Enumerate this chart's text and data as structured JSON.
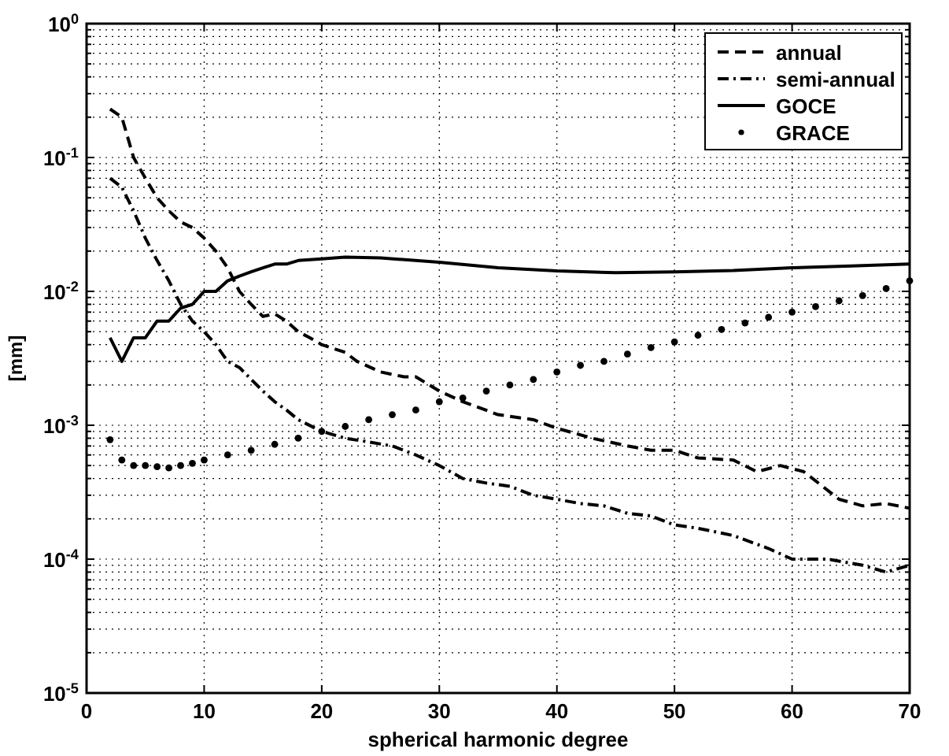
{
  "chart_data": {
    "type": "line",
    "xlabel": "spherical harmonic degree",
    "ylabel": "[mm]",
    "log": "y",
    "grid": true,
    "legend": "top right",
    "xlim": [
      0,
      70
    ],
    "xticks": [
      0,
      10,
      20,
      30,
      40,
      50,
      60,
      70
    ],
    "ylim": [
      1e-05,
      1
    ],
    "yticks": [
      {
        "value": 1e-05,
        "label": "10$^{-5}$"
      },
      {
        "value": 0.0001,
        "label": "10$^{-4}$"
      },
      {
        "value": 0.001,
        "label": "10$^{-3}$"
      },
      {
        "value": 0.01,
        "label": "10$^{-2}$"
      },
      {
        "value": 0.1,
        "label": "10$^{-1}$"
      },
      {
        "value": 1,
        "label": "10$^{0}$"
      }
    ],
    "series": [
      {
        "name": "annual",
        "color": "#000000",
        "line_style": "dashed",
        "marker": "none",
        "x": [
          2,
          3,
          4,
          5,
          6,
          7,
          8,
          9,
          10,
          11,
          12,
          13,
          14,
          15,
          16,
          17,
          18,
          19,
          20,
          22,
          23,
          25,
          27,
          28,
          30,
          32,
          35,
          38,
          40,
          43,
          46,
          48,
          50,
          52,
          55,
          57,
          59,
          61,
          64,
          66,
          68,
          70
        ],
        "values": [
          0.23,
          0.2,
          0.1,
          0.07,
          0.05,
          0.04,
          0.033,
          0.03,
          0.025,
          0.02,
          0.015,
          0.01,
          0.008,
          0.0065,
          0.0068,
          0.006,
          0.005,
          0.0045,
          0.004,
          0.0035,
          0.003,
          0.0025,
          0.0023,
          0.0023,
          0.0018,
          0.0015,
          0.0012,
          0.0011,
          0.00095,
          0.0008,
          0.0007,
          0.00065,
          0.00065,
          0.00057,
          0.00055,
          0.00045,
          0.0005,
          0.00045,
          0.00028,
          0.00025,
          0.00026,
          0.00024
        ]
      },
      {
        "name": "semi-annual",
        "color": "#000000",
        "line_style": "dashdot",
        "marker": "none",
        "x": [
          2,
          3,
          4,
          5,
          6,
          7,
          8,
          9,
          10,
          11,
          12,
          13,
          14,
          15,
          16,
          17,
          18,
          20,
          22,
          24,
          26,
          28,
          30,
          32,
          34,
          36,
          38,
          40,
          42,
          44,
          46,
          48,
          50,
          52,
          55,
          58,
          60,
          63,
          66,
          68,
          70
        ],
        "values": [
          0.07,
          0.06,
          0.04,
          0.025,
          0.017,
          0.012,
          0.008,
          0.006,
          0.005,
          0.004,
          0.003,
          0.0027,
          0.0022,
          0.0018,
          0.0015,
          0.0013,
          0.0011,
          0.0009,
          0.0008,
          0.00075,
          0.0007,
          0.0006,
          0.0005,
          0.0004,
          0.00037,
          0.00035,
          0.0003,
          0.00028,
          0.00026,
          0.00025,
          0.00022,
          0.00021,
          0.00018,
          0.00017,
          0.00015,
          0.00012,
          0.0001,
          0.0001,
          9e-05,
          8e-05,
          9e-05
        ]
      },
      {
        "name": "GOCE",
        "color": "#000000",
        "line_style": "solid",
        "marker": "none",
        "x": [
          2,
          3,
          4,
          5,
          6,
          7,
          8,
          9,
          10,
          11,
          12,
          13,
          14,
          15,
          16,
          17,
          18,
          20,
          22,
          25,
          30,
          35,
          40,
          45,
          50,
          55,
          60,
          65,
          70
        ],
        "values": [
          0.0045,
          0.003,
          0.0045,
          0.0045,
          0.006,
          0.006,
          0.0075,
          0.008,
          0.01,
          0.01,
          0.012,
          0.013,
          0.014,
          0.015,
          0.016,
          0.016,
          0.017,
          0.0175,
          0.018,
          0.0178,
          0.0165,
          0.015,
          0.0142,
          0.0138,
          0.014,
          0.0143,
          0.015,
          0.0155,
          0.016
        ]
      },
      {
        "name": "GRACE",
        "type": "scatter",
        "color": "#000000",
        "marker": "circle",
        "x": [
          2,
          3,
          4,
          5,
          6,
          7,
          8,
          9,
          10,
          12,
          14,
          16,
          18,
          20,
          22,
          24,
          26,
          28,
          30,
          32,
          34,
          36,
          38,
          40,
          42,
          44,
          46,
          48,
          50,
          52,
          54,
          56,
          58,
          60,
          62,
          64,
          66,
          68,
          70
        ],
        "values": [
          0.00078,
          0.00055,
          0.0005,
          0.0005,
          0.00049,
          0.00048,
          0.0005,
          0.00052,
          0.00055,
          0.0006,
          0.00065,
          0.00072,
          0.0008,
          0.0009,
          0.00098,
          0.0011,
          0.0012,
          0.0013,
          0.0015,
          0.0016,
          0.0018,
          0.002,
          0.0022,
          0.0025,
          0.0028,
          0.003,
          0.0034,
          0.0038,
          0.0042,
          0.0047,
          0.0052,
          0.0058,
          0.0064,
          0.007,
          0.0077,
          0.0085,
          0.0093,
          0.0105,
          0.012
        ]
      }
    ]
  }
}
